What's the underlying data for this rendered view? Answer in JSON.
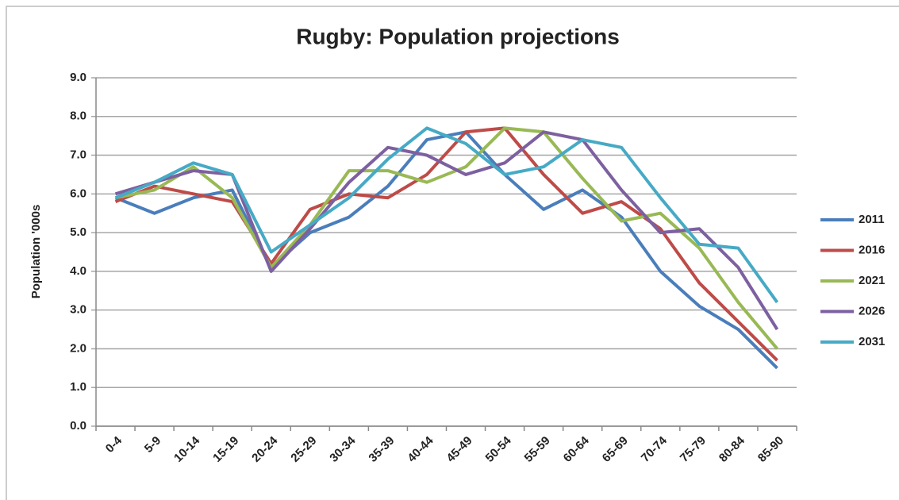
{
  "chart_data": {
    "type": "line",
    "title": "Rugby:  Population projections",
    "y_label": "Population   '000s",
    "categories": [
      "0-4",
      "5-9",
      "10-14",
      "15-19",
      "20-24",
      "25-29",
      "30-34",
      "35-39",
      "40-44",
      "45-49",
      "50-54",
      "55-59",
      "60-64",
      "65-69",
      "70-74",
      "75-79",
      "80-84",
      "85-90"
    ],
    "series": [
      {
        "name": "2011",
        "color": "#4a7ebb",
        "values": [
          5.9,
          5.5,
          5.9,
          6.1,
          4.1,
          5.0,
          5.4,
          6.2,
          7.4,
          7.6,
          6.5,
          5.6,
          6.1,
          5.4,
          4.0,
          3.1,
          2.5,
          1.5
        ]
      },
      {
        "name": "2016",
        "color": "#be4b48",
        "values": [
          5.8,
          6.2,
          6.0,
          5.8,
          4.2,
          5.6,
          6.0,
          5.9,
          6.5,
          7.6,
          7.7,
          6.5,
          5.5,
          5.8,
          5.1,
          3.7,
          2.7,
          1.7
        ]
      },
      {
        "name": "2021",
        "color": "#98b954",
        "values": [
          5.9,
          6.1,
          6.7,
          5.9,
          4.1,
          5.2,
          6.6,
          6.6,
          6.3,
          6.7,
          7.7,
          7.6,
          6.4,
          5.3,
          5.5,
          4.6,
          3.2,
          2.0
        ]
      },
      {
        "name": "2026",
        "color": "#7d60a0",
        "values": [
          6.0,
          6.3,
          6.6,
          6.5,
          4.0,
          5.1,
          6.3,
          7.2,
          7.0,
          6.5,
          6.8,
          7.6,
          7.4,
          6.1,
          5.0,
          5.1,
          4.1,
          2.5
        ]
      },
      {
        "name": "2031",
        "color": "#46aac5",
        "values": [
          5.9,
          6.3,
          6.8,
          6.5,
          4.5,
          5.2,
          5.9,
          6.9,
          7.7,
          7.3,
          6.5,
          6.7,
          7.4,
          7.2,
          5.9,
          4.7,
          4.6,
          3.2
        ]
      }
    ],
    "ylim": [
      0,
      9
    ],
    "yticks": [
      {
        "value": 0,
        "label": "0.0"
      },
      {
        "value": 1,
        "label": "1.0"
      },
      {
        "value": 2,
        "label": "2.0"
      },
      {
        "value": 3,
        "label": "3.0"
      },
      {
        "value": 4,
        "label": "4.0"
      },
      {
        "value": 5,
        "label": "5.0"
      },
      {
        "value": 6,
        "label": "6.0"
      },
      {
        "value": 7,
        "label": "7.0"
      },
      {
        "value": 8,
        "label": "8.0"
      },
      {
        "value": 9,
        "label": "9.0"
      }
    ],
    "grid": true,
    "legend": "right"
  }
}
